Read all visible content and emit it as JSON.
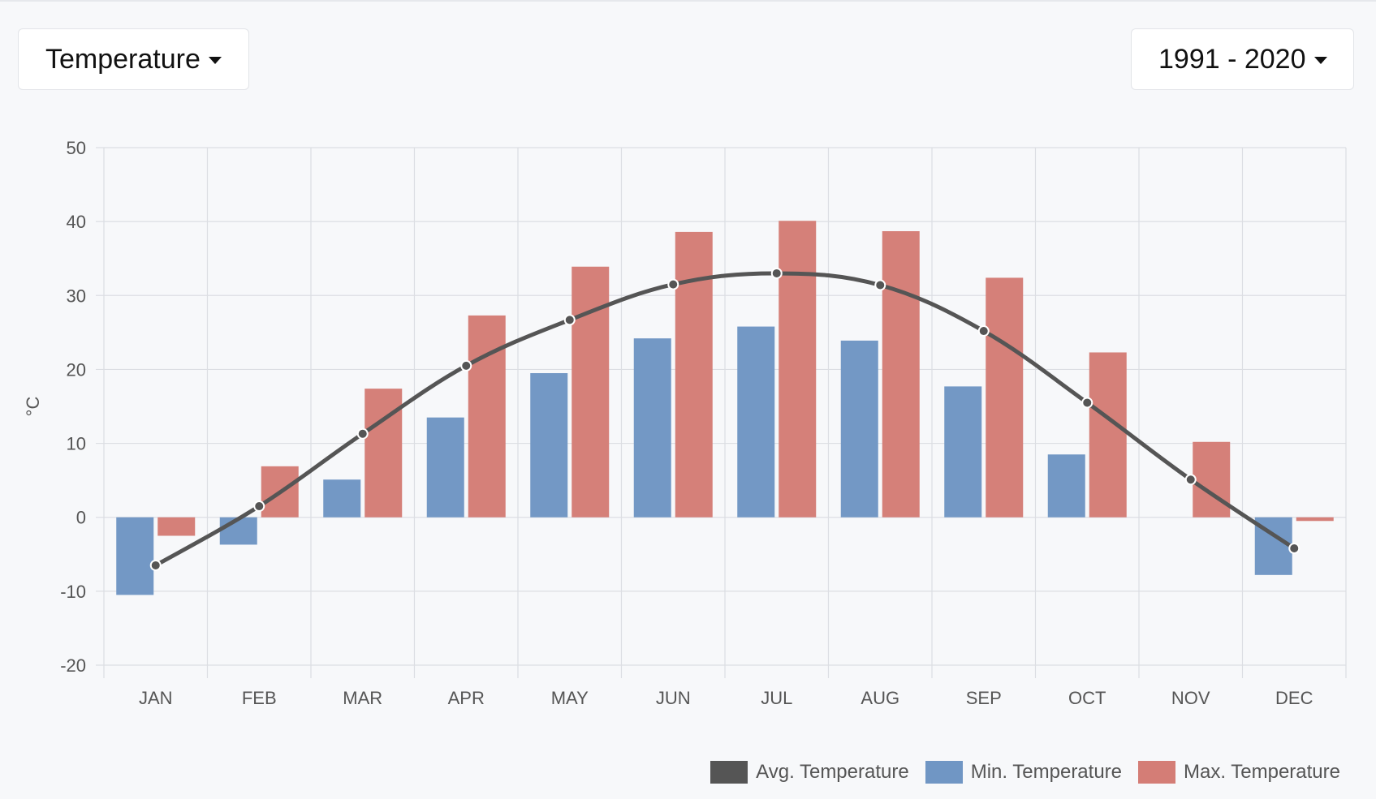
{
  "controls": {
    "metric_label": "Temperature",
    "period_label": "1991 - 2020"
  },
  "colors": {
    "avg": "#555555",
    "min": "#7096c4",
    "max": "#d47d76",
    "grid": "#dcdee3"
  },
  "chart_data": {
    "type": "bar",
    "categories": [
      "JAN",
      "FEB",
      "MAR",
      "APR",
      "MAY",
      "JUN",
      "JUL",
      "AUG",
      "SEP",
      "OCT",
      "NOV",
      "DEC"
    ],
    "series": [
      {
        "name": "Min. Temperature",
        "type": "bar",
        "values": [
          -10.5,
          -3.7,
          5.1,
          13.5,
          19.5,
          24.2,
          25.8,
          23.9,
          17.7,
          8.5,
          0,
          -7.8
        ]
      },
      {
        "name": "Max. Temperature",
        "type": "bar",
        "values": [
          -2.5,
          6.9,
          17.4,
          27.3,
          33.9,
          38.6,
          40.1,
          38.7,
          32.4,
          22.3,
          10.2,
          -0.5
        ]
      },
      {
        "name": "Avg. Temperature",
        "type": "line",
        "values": [
          -6.5,
          1.5,
          11.3,
          20.5,
          26.7,
          31.5,
          33.0,
          31.4,
          25.2,
          15.5,
          5.1,
          -4.2
        ]
      }
    ],
    "ylabel": "°C",
    "ylim": [
      -20,
      50
    ],
    "yticks": [
      -20,
      -10,
      0,
      10,
      20,
      30,
      40,
      50
    ],
    "grid": true,
    "legend_position": "bottom-right"
  }
}
